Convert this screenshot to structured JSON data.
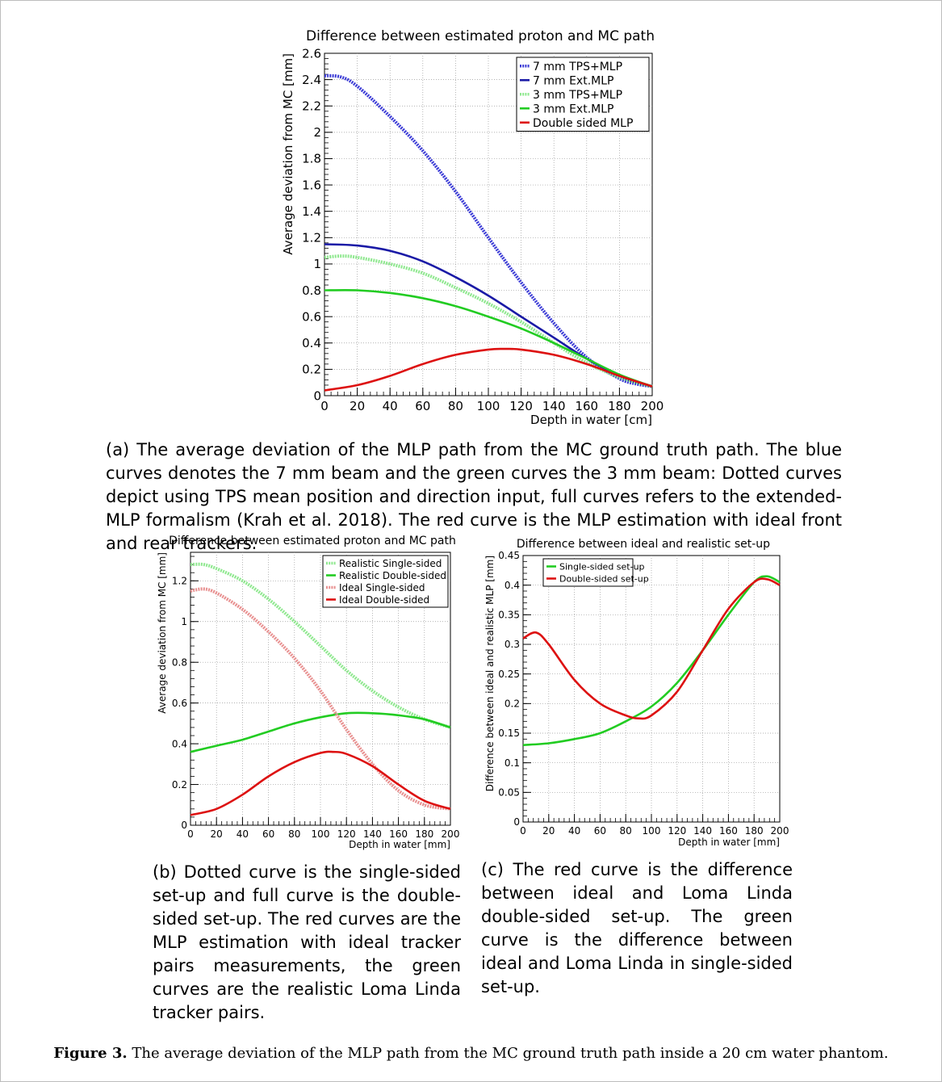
{
  "figure": {
    "label": "Figure 3.",
    "caption": "The average deviation of the MLP path from the MC ground truth path inside a 20 cm water phantom."
  },
  "captions": {
    "a": "(a) The average deviation of the MLP path from the MC ground truth path. The blue curves denotes the 7 mm beam and the green curves the 3 mm beam: Dotted curves depict using TPS mean position and direction input, full curves refers to the extended-MLP formalism (Krah et al. 2018). The red curve is the MLP estimation with ideal front and rear trackers.",
    "b": "(b) Dotted curve is the single-sided set-up and full curve is the double-sided set-up. The red curves are the MLP estimation with ideal tracker pairs measurements, the green curves are the realistic Loma Linda tracker pairs.",
    "c": "(c) The red curve is the difference between ideal and Loma Linda double-sided set-up. The green curve is the difference between ideal and Loma Linda in single-sided set-up."
  },
  "chart_data": [
    {
      "type": "line",
      "title": "Difference between estimated proton and MC path",
      "xlabel": "Depth in water [cm]",
      "ylabel": "Average deviation from MC [mm]",
      "xlim": [
        0,
        200
      ],
      "ylim": [
        0,
        2.6
      ],
      "xticks": [
        0,
        20,
        40,
        60,
        80,
        100,
        120,
        140,
        160,
        180,
        200
      ],
      "yticks": [
        0,
        0.2,
        0.4,
        0.6,
        0.8,
        1,
        1.2,
        1.4,
        1.6,
        1.8,
        2,
        2.2,
        2.4,
        2.6
      ],
      "grid": true,
      "legend_position": "top-right",
      "series": [
        {
          "name": "7 mm TPS+MLP",
          "color": "#3b3bd6",
          "style": "dotted",
          "x": [
            0,
            10,
            20,
            40,
            60,
            80,
            100,
            120,
            140,
            160,
            180,
            190,
            200
          ],
          "y": [
            2.43,
            2.42,
            2.35,
            2.12,
            1.86,
            1.55,
            1.2,
            0.86,
            0.55,
            0.29,
            0.13,
            0.09,
            0.07
          ]
        },
        {
          "name": "7 mm Ext.MLP",
          "color": "#1a1aa6",
          "style": "solid",
          "x": [
            0,
            20,
            40,
            60,
            80,
            100,
            120,
            140,
            160,
            180,
            190,
            200
          ],
          "y": [
            1.15,
            1.14,
            1.1,
            1.02,
            0.9,
            0.76,
            0.6,
            0.44,
            0.28,
            0.15,
            0.1,
            0.07
          ]
        },
        {
          "name": "3 mm TPS+MLP",
          "color": "#8fe88f",
          "style": "dotted",
          "x": [
            0,
            10,
            20,
            40,
            60,
            80,
            100,
            120,
            140,
            160,
            180,
            200
          ],
          "y": [
            1.05,
            1.06,
            1.05,
            1.0,
            0.93,
            0.82,
            0.7,
            0.56,
            0.4,
            0.25,
            0.14,
            0.07
          ]
        },
        {
          "name": "3 mm Ext.MLP",
          "color": "#22cc22",
          "style": "solid",
          "x": [
            0,
            20,
            40,
            60,
            80,
            100,
            120,
            140,
            160,
            180,
            200
          ],
          "y": [
            0.8,
            0.8,
            0.78,
            0.74,
            0.68,
            0.6,
            0.51,
            0.4,
            0.28,
            0.16,
            0.07
          ]
        },
        {
          "name": "Double sided MLP",
          "color": "#dd1111",
          "style": "solid",
          "x": [
            0,
            20,
            40,
            60,
            80,
            100,
            110,
            120,
            140,
            160,
            180,
            200
          ],
          "y": [
            0.04,
            0.08,
            0.15,
            0.24,
            0.31,
            0.35,
            0.355,
            0.35,
            0.31,
            0.24,
            0.15,
            0.07
          ]
        }
      ]
    },
    {
      "type": "line",
      "title": "Difference between estimated proton and MC path",
      "xlabel": "Depth in water [mm]",
      "ylabel": "Average deviation from MC [mm]",
      "xlim": [
        0,
        200
      ],
      "ylim": [
        0,
        1.34
      ],
      "xticks": [
        0,
        20,
        40,
        60,
        80,
        100,
        120,
        140,
        160,
        180,
        200
      ],
      "yticks": [
        0,
        0.2,
        0.4,
        0.6,
        0.8,
        1,
        1.2
      ],
      "grid": true,
      "legend_position": "top-right",
      "series": [
        {
          "name": "Realistic Single-sided",
          "color": "#8fe88f",
          "style": "dotted",
          "x": [
            0,
            10,
            20,
            40,
            60,
            80,
            100,
            120,
            140,
            160,
            180,
            200
          ],
          "y": [
            1.28,
            1.28,
            1.26,
            1.2,
            1.11,
            1.0,
            0.88,
            0.76,
            0.66,
            0.58,
            0.52,
            0.48
          ]
        },
        {
          "name": "Realistic Double-sided",
          "color": "#22cc22",
          "style": "solid",
          "x": [
            0,
            20,
            40,
            60,
            80,
            100,
            120,
            140,
            160,
            180,
            200
          ],
          "y": [
            0.36,
            0.39,
            0.42,
            0.46,
            0.5,
            0.53,
            0.55,
            0.55,
            0.54,
            0.52,
            0.48
          ]
        },
        {
          "name": "Ideal Single-sided",
          "color": "#e89090",
          "style": "dotted",
          "x": [
            0,
            10,
            20,
            40,
            60,
            80,
            100,
            120,
            140,
            160,
            180,
            200
          ],
          "y": [
            1.15,
            1.16,
            1.14,
            1.06,
            0.95,
            0.82,
            0.66,
            0.47,
            0.3,
            0.17,
            0.1,
            0.08
          ]
        },
        {
          "name": "Ideal Double-sided",
          "color": "#dd1111",
          "style": "solid",
          "x": [
            0,
            20,
            40,
            60,
            80,
            100,
            110,
            120,
            140,
            160,
            180,
            200
          ],
          "y": [
            0.05,
            0.08,
            0.15,
            0.24,
            0.31,
            0.355,
            0.36,
            0.35,
            0.29,
            0.2,
            0.12,
            0.08
          ]
        }
      ]
    },
    {
      "type": "line",
      "title": "Difference between ideal and realistic set-up",
      "xlabel": "Depth in water [mm]",
      "ylabel": "Difference between ideal and realistic MLP [mm]",
      "xlim": [
        0,
        200
      ],
      "ylim": [
        0,
        0.45
      ],
      "xticks": [
        0,
        20,
        40,
        60,
        80,
        100,
        120,
        140,
        160,
        180,
        200
      ],
      "yticks": [
        0,
        0.05,
        0.1,
        0.15,
        0.2,
        0.25,
        0.3,
        0.35,
        0.4,
        0.45
      ],
      "grid": true,
      "legend_position": "top-left",
      "series": [
        {
          "name": "Single-sided set-up",
          "color": "#22cc22",
          "style": "solid",
          "x": [
            0,
            20,
            40,
            60,
            80,
            100,
            120,
            140,
            160,
            180,
            190,
            200
          ],
          "y": [
            0.13,
            0.133,
            0.14,
            0.15,
            0.17,
            0.195,
            0.235,
            0.29,
            0.35,
            0.405,
            0.415,
            0.405
          ]
        },
        {
          "name": "Double-sided set-up",
          "color": "#dd1111",
          "style": "solid",
          "x": [
            0,
            10,
            20,
            40,
            60,
            80,
            90,
            100,
            120,
            140,
            160,
            180,
            190,
            200
          ],
          "y": [
            0.31,
            0.32,
            0.3,
            0.24,
            0.2,
            0.18,
            0.175,
            0.18,
            0.22,
            0.29,
            0.36,
            0.405,
            0.41,
            0.4
          ]
        }
      ]
    }
  ]
}
